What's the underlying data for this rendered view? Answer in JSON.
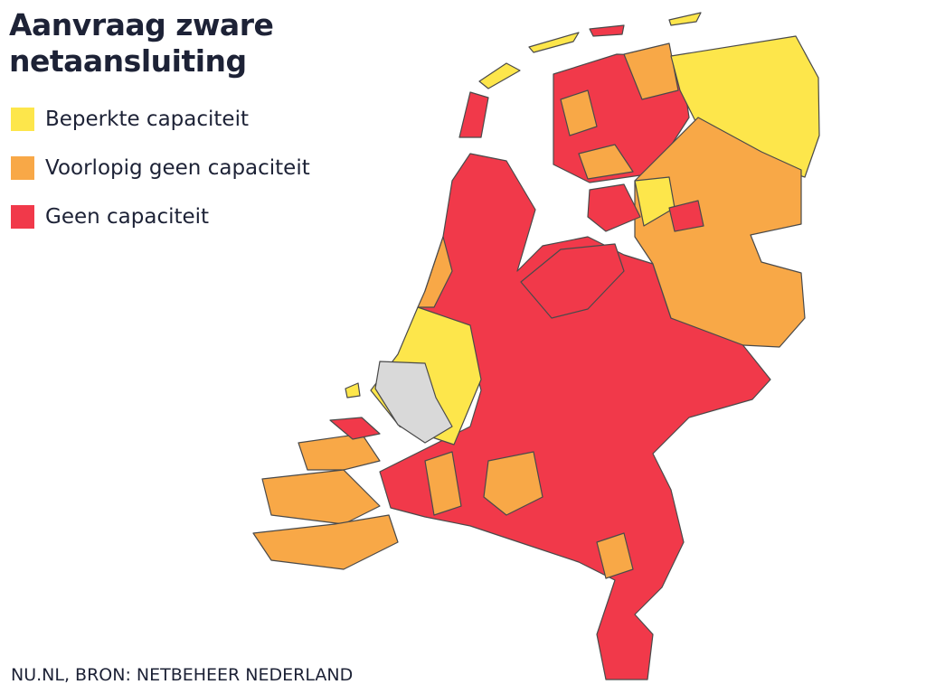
{
  "header": {
    "title": "Aanvraag zware netaansluiting"
  },
  "legend": [
    {
      "label": "Beperkte capaciteit",
      "color": "#fde64b"
    },
    {
      "label": "Voorlopig geen capaciteit",
      "color": "#f8a847"
    },
    {
      "label": "Geen capaciteit",
      "color": "#f1394a"
    }
  ],
  "source": "NU.NL, BRON: NETBEHEER NEDERLAND"
}
